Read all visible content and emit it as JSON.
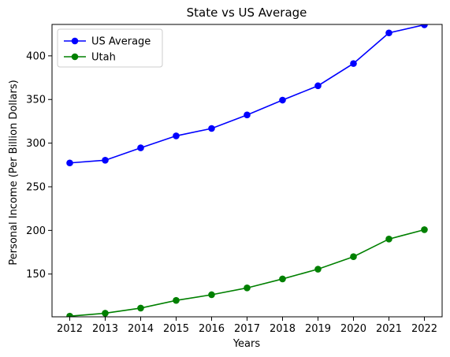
{
  "chart_data": {
    "type": "line",
    "title": "State vs US Average",
    "xlabel": "Years",
    "ylabel": "Personal Income (Per Billion Dollars)",
    "categories": [
      "2012",
      "2013",
      "2014",
      "2015",
      "2016",
      "2017",
      "2018",
      "2019",
      "2020",
      "2021",
      "2022"
    ],
    "series": [
      {
        "name": "US Average",
        "color": "#0000ff",
        "values": [
          277.3,
          280.4,
          294.6,
          308.3,
          316.8,
          332.3,
          349.3,
          365.7,
          391.2,
          426.3,
          435.6
        ]
      },
      {
        "name": "Utah",
        "color": "#008000",
        "values": [
          101.7,
          105.1,
          111.0,
          119.8,
          126.3,
          134.1,
          144.4,
          155.6,
          169.9,
          190.1,
          200.8
        ]
      }
    ],
    "ylim": [
      101,
      436
    ],
    "yticks": [
      150,
      200,
      250,
      300,
      350,
      400
    ],
    "legend": "top-left",
    "grid": false,
    "markers": "circle"
  }
}
